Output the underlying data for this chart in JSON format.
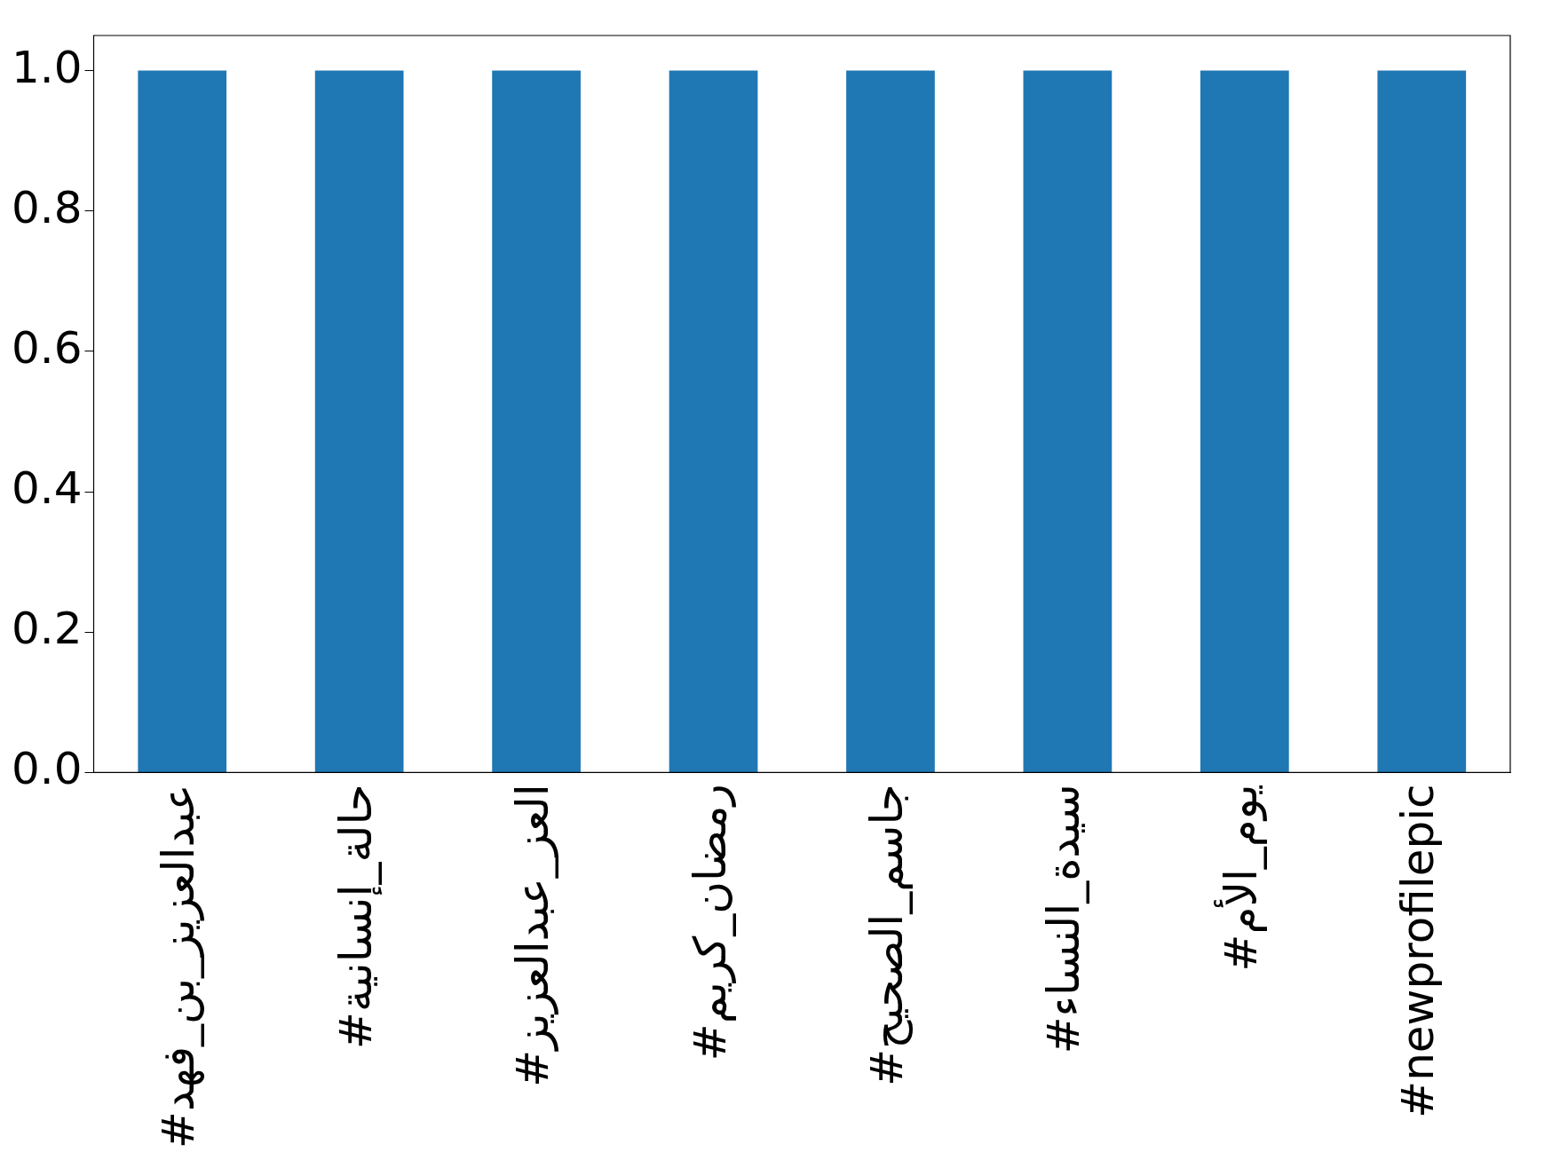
{
  "chart_data": {
    "type": "bar",
    "categories": [
      "#عبدالعزيز_بن_فهد",
      "#حالة_إنسانية",
      "#العز_عبدالعزيز",
      "#رمضان_كريم",
      "#جاسم_الصحيح",
      "#سيدة_النساء",
      "#يوم_الأم",
      "#newprofilepic"
    ],
    "values": [
      1,
      1,
      1,
      1,
      1,
      1,
      1,
      1
    ],
    "color": "#1f77b4",
    "ylim": [
      0,
      1.05
    ],
    "yticks": [
      {
        "value": 0,
        "label": "0.0"
      },
      {
        "value": 0.2,
        "label": "0.2"
      },
      {
        "value": 0.4,
        "label": "0.4"
      },
      {
        "value": 0.6,
        "label": "0.6"
      },
      {
        "value": 0.8,
        "label": "0.8"
      },
      {
        "value": 1,
        "label": "1.0"
      }
    ],
    "grid": false,
    "legend": false
  }
}
